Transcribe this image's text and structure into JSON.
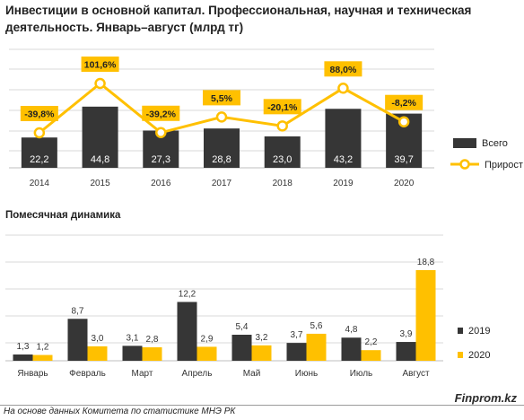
{
  "title": "Инвестиции в основной капитал. Профессиональная, научная и техническая деятельность. Январь–август (млрд тг)",
  "subtitle": "Помесячная  динамика",
  "brand": "Finprom.kz",
  "source": "На основе данных  Комитета по статистике МНЭ РК",
  "colors": {
    "bar_dark": "#363636",
    "accent": "#FFC000",
    "grid": "#d9d9d9",
    "marker_fill": "#ffffff"
  },
  "chart_data": [
    {
      "type": "bar+line",
      "categories": [
        "2014",
        "2015",
        "2016",
        "2017",
        "2018",
        "2019",
        "2020"
      ],
      "series": [
        {
          "name": "Всего",
          "type": "bar",
          "values": [
            22.2,
            44.8,
            27.3,
            28.8,
            23.0,
            43.2,
            39.7
          ],
          "labels": [
            "22,2",
            "44,8",
            "27,3",
            "28,8",
            "23,0",
            "43,2",
            "39,7"
          ]
        },
        {
          "name": "Прирост",
          "type": "line",
          "values": [
            -39.8,
            101.6,
            -39.2,
            5.5,
            -20.1,
            88.0,
            -8.2
          ],
          "labels": [
            "-39,8%",
            "101,6%",
            "-39,2%",
            "5,5%",
            "-20,1%",
            "88,0%",
            "-8,2%"
          ]
        }
      ],
      "legend": "right",
      "grid": true
    },
    {
      "type": "bar",
      "categories": [
        "Январь",
        "Февраль",
        "Март",
        "Апрель",
        "Май",
        "Июнь",
        "Июль",
        "Август"
      ],
      "series": [
        {
          "name": "2019",
          "values": [
            1.3,
            8.7,
            3.1,
            12.2,
            5.4,
            3.7,
            4.8,
            3.9
          ],
          "labels": [
            "1,3",
            "8,7",
            "3,1",
            "12,2",
            "5,4",
            "3,7",
            "4,8",
            "3,9"
          ]
        },
        {
          "name": "2020",
          "values": [
            1.2,
            3.0,
            2.8,
            2.9,
            3.2,
            5.6,
            2.2,
            18.8
          ],
          "labels": [
            "1,2",
            "3,0",
            "2,8",
            "2,9",
            "3,2",
            "5,6",
            "2,2",
            "18,8"
          ]
        }
      ],
      "legend": "right",
      "grid": true
    }
  ]
}
